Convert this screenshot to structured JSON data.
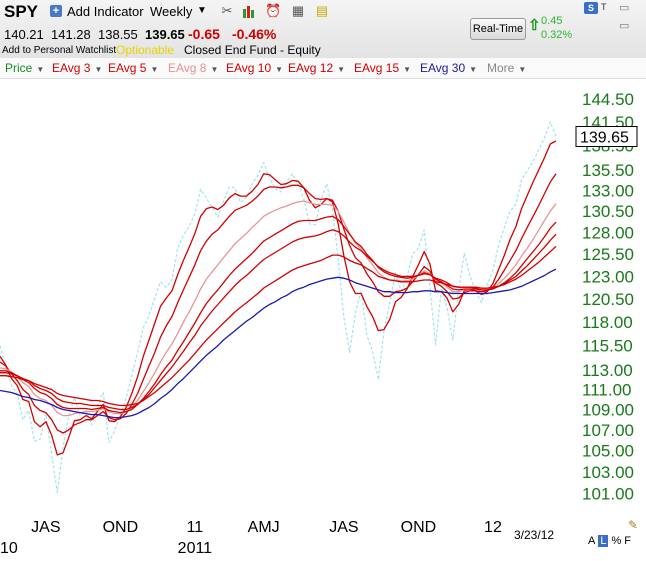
{
  "header": {
    "symbol": "SPY",
    "add_indicator": "Add Indicator",
    "period": "Weekly",
    "open": "140.21",
    "high": "141.28",
    "low": "138.55",
    "close": "139.65",
    "change": "-0.65",
    "change_pct": "-0.46%",
    "watchlist": "Add to Personal Watchlist",
    "optionable": "Optionable",
    "fund_type": "Closed End Fund - Equity",
    "realtime_label": "Real-Time",
    "rt_change": "0.45",
    "rt_change_pct": "0.32%",
    "s_button": "S",
    "t_button": "T",
    "icons": [
      "plus-icon",
      "dropdown-arrow-icon",
      "tools-icon",
      "bar-chart-icon",
      "alarm-clock-icon",
      "grid-icon",
      "note-icon",
      "up-arrow-icon",
      "minimize-icon",
      "restore-icon",
      "pencil-icon"
    ]
  },
  "legend": [
    {
      "label": "Price",
      "color": "#1a8c1a"
    },
    {
      "label": "EAvg 3",
      "color": "#d00000"
    },
    {
      "label": "EAvg 5",
      "color": "#d00000"
    },
    {
      "label": "EAvg 8",
      "color": "#e89090"
    },
    {
      "label": "EAvg 10",
      "color": "#d00000"
    },
    {
      "label": "EAvg 12",
      "color": "#d00000"
    },
    {
      "label": "EAvg 15",
      "color": "#d00000"
    },
    {
      "label": "EAvg 30",
      "color": "#1a1aa0"
    },
    {
      "label": "More",
      "color": "#888888"
    }
  ],
  "footer": {
    "date": "3/23/12",
    "toggles": [
      "A",
      "L",
      "%",
      "F"
    ],
    "selected_toggle": "L"
  },
  "chart_data": {
    "type": "line",
    "yscale": "log",
    "ylim": [
      99.5,
      147
    ],
    "ytick_labels": [
      "144.50",
      "141.50",
      "138.50",
      "135.50",
      "133.00",
      "130.50",
      "128.00",
      "125.50",
      "123.00",
      "120.50",
      "118.00",
      "115.50",
      "113.00",
      "111.00",
      "109.00",
      "107.00",
      "105.00",
      "103.00",
      "101.00"
    ],
    "current_price_label": "139.65",
    "x_labels": [
      {
        "label": "JAS",
        "week": 8
      },
      {
        "label": "OND",
        "week": 21
      },
      {
        "label": "11",
        "week": 34
      },
      {
        "label": "AMJ",
        "week": 46
      },
      {
        "label": "JAS",
        "week": 60
      },
      {
        "label": "OND",
        "week": 73
      },
      {
        "label": "12",
        "week": 86
      }
    ],
    "x_year_labels": [
      {
        "label": "10",
        "week": 0
      },
      {
        "label": "2011",
        "week": 34
      }
    ],
    "weeks": 98,
    "series": [
      {
        "name": "Price",
        "color": "#9fe4ee",
        "dashed": true,
        "values": [
          115.5,
          113.2,
          111.4,
          110.6,
          108.0,
          108.9,
          105.9,
          106.1,
          108.6,
          104.7,
          101.1,
          105.3,
          108.5,
          110.2,
          108.4,
          108.9,
          107.5,
          109.4,
          110.7,
          105.8,
          106.9,
          108.4,
          110.2,
          112.4,
          114.8,
          117.4,
          118.7,
          120.6,
          122.4,
          121.8,
          122.6,
          126.2,
          127.7,
          128.7,
          130.2,
          133.1,
          132.1,
          130.9,
          129.8,
          131.7,
          133.4,
          133.3,
          131.5,
          132.2,
          133.8,
          134.8,
          136.4,
          134.5,
          133.2,
          132.8,
          134.0,
          135.0,
          133.8,
          132.0,
          129.0,
          128.9,
          131.9,
          133.8,
          130.7,
          125.0,
          118.5,
          114.8,
          119.0,
          121.4,
          116.6,
          114.9,
          112.0,
          117.1,
          120.1,
          123.4,
          121.4,
          122.9,
          125.5,
          126.2,
          128.3,
          121.8,
          115.6,
          121.7,
          119.5,
          116.1,
          121.5,
          125.6,
          123.0,
          121.3,
          120.1,
          122.1,
          123.7,
          126.6,
          128.6,
          130.5,
          131.3,
          134.3,
          135.4,
          136.5,
          138.0,
          139.5,
          141.5,
          139.65
        ]
      },
      {
        "name": "EAvg 3",
        "color": "#d40000",
        "values": [
          114.4,
          113.5,
          112.1,
          111.4,
          110.0,
          109.8,
          107.8,
          107.3,
          107.8,
          106.5,
          104.6,
          104.8,
          106.3,
          107.9,
          108.0,
          108.4,
          108.1,
          108.8,
          109.5,
          107.9,
          107.8,
          108.3,
          109.2,
          110.6,
          112.3,
          114.4,
          116.1,
          117.9,
          119.7,
          120.6,
          121.4,
          123.2,
          124.8,
          126.3,
          127.9,
          129.9,
          130.8,
          131.0,
          130.7,
          131.2,
          132.1,
          132.6,
          132.3,
          132.3,
          132.9,
          133.7,
          135.0,
          134.9,
          134.3,
          133.7,
          133.8,
          134.2,
          134.1,
          133.3,
          131.8,
          130.9,
          131.3,
          132.0,
          131.6,
          129.0,
          125.3,
          122.4,
          121.1,
          121.1,
          119.7,
          118.6,
          117.1,
          117.2,
          118.3,
          120.2,
          120.7,
          121.6,
          123.0,
          124.3,
          125.8,
          124.4,
          121.4,
          121.3,
          120.6,
          119.1,
          119.9,
          121.4,
          121.6,
          121.4,
          121.0,
          121.3,
          122.2,
          123.8,
          125.4,
          127.2,
          128.7,
          130.8,
          132.4,
          134.0,
          135.5,
          137.0,
          138.7,
          139.1
        ]
      },
      {
        "name": "EAvg 5",
        "color": "#d40000",
        "values": [
          113.8,
          113.4,
          112.6,
          111.9,
          111.0,
          110.5,
          109.4,
          108.9,
          108.7,
          108.0,
          107.0,
          106.7,
          107.0,
          107.5,
          107.7,
          108.0,
          108.0,
          108.4,
          108.8,
          108.2,
          108.0,
          108.1,
          108.6,
          109.5,
          110.6,
          112.0,
          113.4,
          114.8,
          116.4,
          117.6,
          118.6,
          120.1,
          121.5,
          122.9,
          124.3,
          125.9,
          127.0,
          127.8,
          128.3,
          129.1,
          129.9,
          130.6,
          130.9,
          131.2,
          131.7,
          132.3,
          133.1,
          133.4,
          133.4,
          133.3,
          133.4,
          133.6,
          133.6,
          133.3,
          132.6,
          132.0,
          131.9,
          132.0,
          131.8,
          130.5,
          128.4,
          126.5,
          125.1,
          124.5,
          123.3,
          122.4,
          121.3,
          120.8,
          120.8,
          121.3,
          121.4,
          121.7,
          122.4,
          123.2,
          124.1,
          123.6,
          122.3,
          121.9,
          121.3,
          120.5,
          120.6,
          121.2,
          121.4,
          121.4,
          121.3,
          121.4,
          121.8,
          122.7,
          123.7,
          124.8,
          125.9,
          127.3,
          128.6,
          129.9,
          131.2,
          132.6,
          134.0,
          135.0
        ]
      },
      {
        "name": "EAvg 8",
        "color": "#e89595",
        "values": [
          113.2,
          113.1,
          112.8,
          112.3,
          111.7,
          111.3,
          110.5,
          110.1,
          109.9,
          109.4,
          108.7,
          108.4,
          108.4,
          108.6,
          108.7,
          108.8,
          108.8,
          108.9,
          109.1,
          108.8,
          108.6,
          108.6,
          108.8,
          109.2,
          109.9,
          110.8,
          111.7,
          112.7,
          113.8,
          114.8,
          115.7,
          116.8,
          118.0,
          119.1,
          120.3,
          121.6,
          122.7,
          123.5,
          124.3,
          125.1,
          125.9,
          126.7,
          127.3,
          127.9,
          128.6,
          129.2,
          129.9,
          130.3,
          130.6,
          130.9,
          131.1,
          131.4,
          131.6,
          131.7,
          131.5,
          131.3,
          131.3,
          131.3,
          131.2,
          130.5,
          129.2,
          127.9,
          126.8,
          126.1,
          125.1,
          124.3,
          123.4,
          122.9,
          122.6,
          122.6,
          122.5,
          122.5,
          122.7,
          123.1,
          123.6,
          123.3,
          122.6,
          122.3,
          121.8,
          121.3,
          121.3,
          121.5,
          121.6,
          121.6,
          121.5,
          121.5,
          121.7,
          122.2,
          122.8,
          123.5,
          124.3,
          125.3,
          126.2,
          127.2,
          128.3,
          129.4,
          130.5,
          131.4
        ]
      },
      {
        "name": "EAvg 10",
        "color": "#d40000",
        "values": [
          112.9,
          112.9,
          112.7,
          112.4,
          112.0,
          111.7,
          111.1,
          110.7,
          110.5,
          110.1,
          109.5,
          109.2,
          109.1,
          109.1,
          109.1,
          109.1,
          109.0,
          109.1,
          109.2,
          108.9,
          108.8,
          108.7,
          108.8,
          109.0,
          109.5,
          110.1,
          110.8,
          111.6,
          112.5,
          113.3,
          114.0,
          115.0,
          115.9,
          116.9,
          117.9,
          119.0,
          120.0,
          120.8,
          121.5,
          122.3,
          123.1,
          123.8,
          124.4,
          125.0,
          125.6,
          126.3,
          127.0,
          127.4,
          127.8,
          128.2,
          128.6,
          129.0,
          129.3,
          129.4,
          129.4,
          129.4,
          129.6,
          129.8,
          129.9,
          129.5,
          128.7,
          127.8,
          126.9,
          126.4,
          125.5,
          124.8,
          124.0,
          123.5,
          123.2,
          123.0,
          122.9,
          122.8,
          122.9,
          123.1,
          123.4,
          123.2,
          122.7,
          122.4,
          122.0,
          121.6,
          121.5,
          121.6,
          121.6,
          121.6,
          121.5,
          121.5,
          121.6,
          121.9,
          122.3,
          122.8,
          123.4,
          124.2,
          125.0,
          125.8,
          126.6,
          127.5,
          128.5,
          129.2
        ]
      },
      {
        "name": "EAvg 12",
        "color": "#d40000",
        "values": [
          112.7,
          112.7,
          112.6,
          112.4,
          112.1,
          111.9,
          111.4,
          111.1,
          110.9,
          110.6,
          110.1,
          109.8,
          109.7,
          109.6,
          109.6,
          109.5,
          109.4,
          109.4,
          109.4,
          109.2,
          109.1,
          109.0,
          109.0,
          109.2,
          109.5,
          110.0,
          110.5,
          111.2,
          111.9,
          112.6,
          113.3,
          114.1,
          114.9,
          115.8,
          116.6,
          117.6,
          118.4,
          119.2,
          119.9,
          120.6,
          121.3,
          122.0,
          122.6,
          123.1,
          123.7,
          124.3,
          124.9,
          125.3,
          125.7,
          126.1,
          126.5,
          126.9,
          127.2,
          127.4,
          127.5,
          127.6,
          127.8,
          128.1,
          128.3,
          128.1,
          127.6,
          126.9,
          126.3,
          125.9,
          125.3,
          124.7,
          124.1,
          123.7,
          123.4,
          123.2,
          123.0,
          123.0,
          123.0,
          123.1,
          123.3,
          123.2,
          122.8,
          122.6,
          122.3,
          121.9,
          121.8,
          121.8,
          121.8,
          121.7,
          121.7,
          121.7,
          121.7,
          121.9,
          122.2,
          122.6,
          123.0,
          123.6,
          124.2,
          124.9,
          125.6,
          126.3,
          127.1,
          127.8
        ]
      },
      {
        "name": "EAvg 15",
        "color": "#d40000",
        "values": [
          112.4,
          112.4,
          112.3,
          112.2,
          112.0,
          111.9,
          111.6,
          111.4,
          111.2,
          111.0,
          110.6,
          110.4,
          110.3,
          110.2,
          110.1,
          110.0,
          109.9,
          109.9,
          109.8,
          109.6,
          109.5,
          109.4,
          109.4,
          109.5,
          109.6,
          109.9,
          110.3,
          110.7,
          111.2,
          111.7,
          112.2,
          112.8,
          113.4,
          114.0,
          114.7,
          115.4,
          116.1,
          116.7,
          117.3,
          117.9,
          118.5,
          119.1,
          119.6,
          120.1,
          120.6,
          121.1,
          121.7,
          122.1,
          122.5,
          122.9,
          123.3,
          123.7,
          124.0,
          124.2,
          124.4,
          124.6,
          124.8,
          125.1,
          125.4,
          125.4,
          125.2,
          124.8,
          124.5,
          124.3,
          123.9,
          123.5,
          123.0,
          122.8,
          122.6,
          122.5,
          122.4,
          122.4,
          122.4,
          122.5,
          122.6,
          122.6,
          122.4,
          122.3,
          122.1,
          121.9,
          121.8,
          121.8,
          121.8,
          121.8,
          121.7,
          121.7,
          121.8,
          121.9,
          122.1,
          122.4,
          122.7,
          123.1,
          123.6,
          124.1,
          124.6,
          125.2,
          125.8,
          126.4
        ]
      },
      {
        "name": "EAvg 30",
        "color": "#1a1ab0",
        "values": [
          110.9,
          110.8,
          110.7,
          110.5,
          110.3,
          110.2,
          110.0,
          109.9,
          109.7,
          109.5,
          109.2,
          109.0,
          108.9,
          108.8,
          108.7,
          108.6,
          108.5,
          108.5,
          108.4,
          108.3,
          108.2,
          108.2,
          108.3,
          108.4,
          108.6,
          108.9,
          109.2,
          109.6,
          110.1,
          110.5,
          111.0,
          111.6,
          112.1,
          112.7,
          113.3,
          113.9,
          114.5,
          115.0,
          115.5,
          116.1,
          116.6,
          117.1,
          117.6,
          118.1,
          118.5,
          119.0,
          119.5,
          119.9,
          120.2,
          120.6,
          120.9,
          121.3,
          121.6,
          121.8,
          122.1,
          122.3,
          122.5,
          122.7,
          122.8,
          122.9,
          122.8,
          122.6,
          122.3,
          122.1,
          121.9,
          121.7,
          121.5,
          121.3,
          121.3,
          121.2,
          121.2,
          121.2,
          121.3,
          121.3,
          121.4,
          121.4,
          121.3,
          121.3,
          121.2,
          121.1,
          121.1,
          121.1,
          121.1,
          121.1,
          121.1,
          121.1,
          121.2,
          121.3,
          121.4,
          121.5,
          121.7,
          121.9,
          122.2,
          122.5,
          122.8,
          123.1,
          123.5,
          123.8
        ]
      }
    ]
  }
}
